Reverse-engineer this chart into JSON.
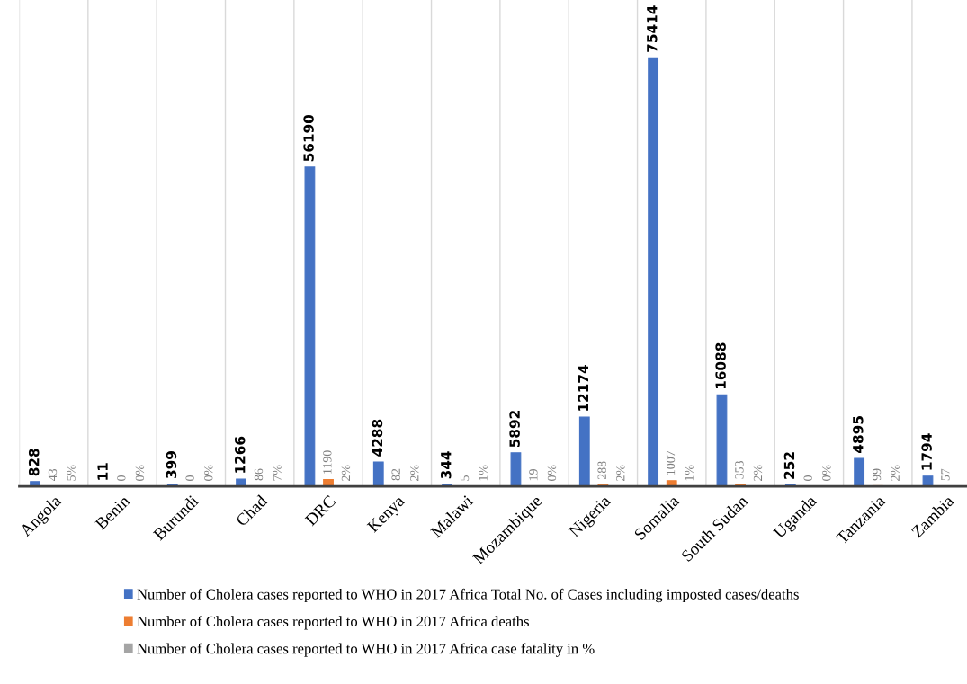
{
  "chart_data": {
    "type": "bar",
    "categories": [
      "Angola",
      "Benin",
      "Burundi",
      "Chad",
      "DRC",
      "Kenya",
      "Malawi",
      "Mozambique",
      "Nigeria",
      "Somalia",
      "South Sudan",
      "Uganda",
      "Tanzania",
      "Zambia"
    ],
    "series": [
      {
        "name": "Number of Cholera cases reported to WHO in 2017 Africa Total No. of Cases including imposted cases/deaths",
        "color": "#4472c4",
        "values": [
          828,
          11,
          399,
          1266,
          56190,
          4288,
          344,
          5892,
          12174,
          75414,
          16088,
          252,
          4895,
          1794
        ],
        "value_labels": [
          "828",
          "11",
          "399",
          "1266",
          "56190",
          "4288",
          "344",
          "5892",
          "12174",
          "75414",
          "16088",
          "252",
          "4895",
          "1794"
        ]
      },
      {
        "name": "Number of Cholera cases reported to WHO in 2017 Africa deaths",
        "color": "#ed7d31",
        "values": [
          43,
          0,
          0,
          86,
          1190,
          82,
          5,
          19,
          288,
          1007,
          353,
          0,
          99,
          57
        ],
        "value_labels": [
          "43",
          "0",
          "0",
          "86",
          "1190",
          "82",
          "5",
          "19",
          "288",
          "1007",
          "353",
          "0",
          "99",
          "57"
        ]
      },
      {
        "name": "Number of Cholera cases reported to WHO in 2017 Africa case fatality in %",
        "color": "#a5a5a5",
        "values": [
          5,
          0,
          0,
          7,
          2,
          2,
          1,
          0,
          2,
          1,
          2,
          0,
          2,
          null
        ],
        "value_labels": [
          "5%",
          "0%",
          "0%",
          "7%",
          "2%",
          "2%",
          "1%",
          "0%",
          "2%",
          "1%",
          "2%",
          "0%",
          "2%",
          null
        ]
      }
    ],
    "grid": "x",
    "legend": "bottom"
  }
}
